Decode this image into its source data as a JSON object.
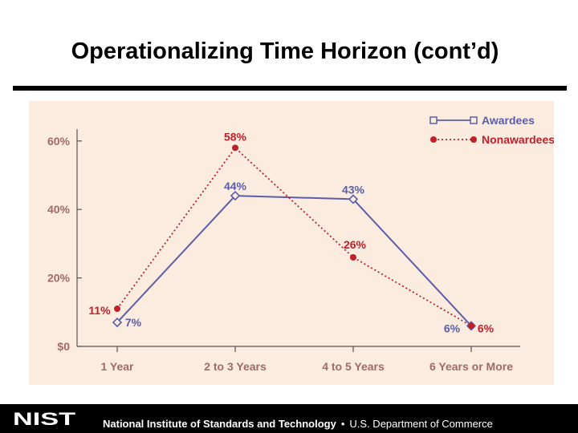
{
  "slide": {
    "title": "Operationalizing Time Horizon (cont’d)"
  },
  "footer": {
    "org_name": "National Institute of Standards and Technology",
    "separator": "•",
    "dept_name": "U.S. Department of Commerce",
    "logo_text": "NIST"
  },
  "colors": {
    "awardees": "#5b5ea6",
    "nonawardees": "#c0202a",
    "panel": "#fbecdf",
    "tick_text": "#a06a66"
  },
  "chart_data": {
    "type": "line",
    "title": "",
    "xlabel": "",
    "ylabel": "",
    "categories": [
      "1 Year",
      "2 to 3 Years",
      "4 to 5 Years",
      "6 Years or More"
    ],
    "y_ticks": [
      {
        "value": 0,
        "label": "$0"
      },
      {
        "value": 20,
        "label": "20%"
      },
      {
        "value": 40,
        "label": "40%"
      },
      {
        "value": 60,
        "label": "60%"
      }
    ],
    "ylim": [
      0,
      62
    ],
    "grid": false,
    "legend_position": "top-right",
    "series": [
      {
        "name": "Awardees",
        "values": [
          7,
          44,
          43,
          6
        ],
        "labels": [
          "7%",
          "44%",
          "43%",
          "6%"
        ],
        "color": "#5b5ea6",
        "style": "solid",
        "marker": "open-diamond"
      },
      {
        "name": "Nonawardees",
        "values": [
          11,
          58,
          26,
          6
        ],
        "labels": [
          "11%",
          "58%",
          "26%",
          "6%"
        ],
        "color": "#c0202a",
        "style": "dotted",
        "marker": "filled-circle"
      }
    ]
  }
}
